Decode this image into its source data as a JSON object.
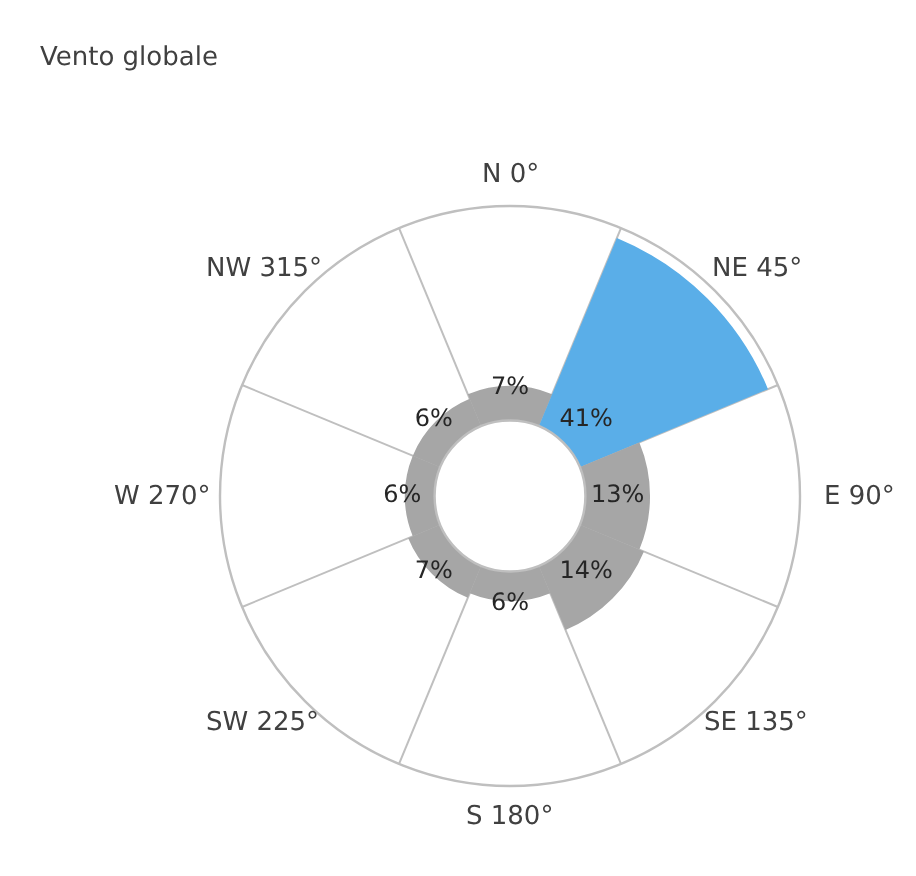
{
  "chart_data": {
    "type": "other",
    "title": "Vento globale",
    "categories": [
      "N 0°",
      "NE 45°",
      "E 90°",
      "SE 135°",
      "S 180°",
      "SW 225°",
      "W 270°",
      "NW 315°"
    ],
    "values": [
      7,
      41,
      13,
      14,
      6,
      7,
      6,
      6
    ],
    "value_labels": [
      "7%",
      "41%",
      "13%",
      "14%",
      "6%",
      "7%",
      "6%",
      "6%"
    ],
    "colors": [
      "#a6a6a6",
      "#5aaee8",
      "#a6a6a6",
      "#a6a6a6",
      "#a6a6a6",
      "#a6a6a6",
      "#a6a6a6",
      "#a6a6a6"
    ]
  }
}
